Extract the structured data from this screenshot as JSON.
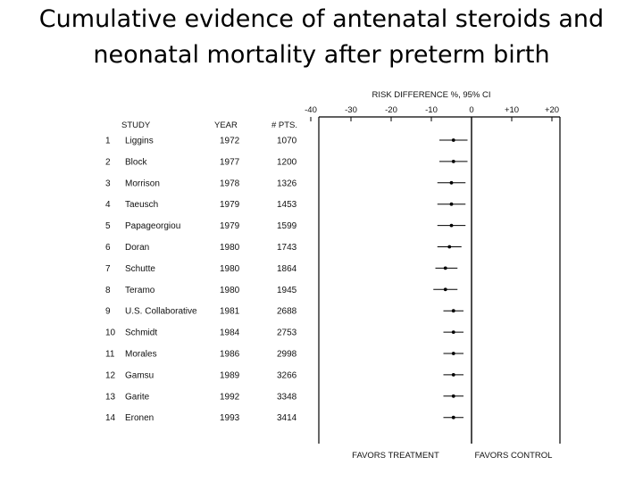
{
  "slide": {
    "title_line1": "Cumulative evidence of antenatal steroids and",
    "title_line2": "neonatal mortality after preterm birth"
  },
  "chart_data": {
    "type": "forest",
    "axis_title": "RISK DIFFERENCE %, 95% CI",
    "x_ticks": [
      -40,
      -30,
      -20,
      -10,
      0,
      10,
      20
    ],
    "x_tick_labels": [
      "-40",
      "-30",
      "-20",
      "-10",
      "0",
      "+10",
      "+20"
    ],
    "xlim": [
      -40,
      20
    ],
    "reference_line": 0,
    "columns": {
      "num": "",
      "study": "STUDY",
      "year": "YEAR",
      "pts": "# PTS."
    },
    "rows": [
      {
        "num": "1",
        "study": "Liggins",
        "year": "1972",
        "pts": "1070",
        "estimate": -4.5,
        "ci": [
          -8,
          -1
        ]
      },
      {
        "num": "2",
        "study": "Block",
        "year": "1977",
        "pts": "1200",
        "estimate": -4.5,
        "ci": [
          -8,
          -1
        ]
      },
      {
        "num": "3",
        "study": "Morrison",
        "year": "1978",
        "pts": "1326",
        "estimate": -5.0,
        "ci": [
          -8.5,
          -1.5
        ]
      },
      {
        "num": "4",
        "study": "Taeusch",
        "year": "1979",
        "pts": "1453",
        "estimate": -5.0,
        "ci": [
          -8.5,
          -1.5
        ]
      },
      {
        "num": "5",
        "study": "Papageorgiou",
        "year": "1979",
        "pts": "1599",
        "estimate": -5.0,
        "ci": [
          -8.5,
          -1.5
        ]
      },
      {
        "num": "6",
        "study": "Doran",
        "year": "1980",
        "pts": "1743",
        "estimate": -5.5,
        "ci": [
          -8.5,
          -2.5
        ]
      },
      {
        "num": "7",
        "study": "Schutte",
        "year": "1980",
        "pts": "1864",
        "estimate": -6.5,
        "ci": [
          -9,
          -3.5
        ]
      },
      {
        "num": "8",
        "study": "Teramo",
        "year": "1980",
        "pts": "1945",
        "estimate": -6.5,
        "ci": [
          -9.5,
          -3.5
        ]
      },
      {
        "num": "9",
        "study": "U.S. Collaborative",
        "year": "1981",
        "pts": "2688",
        "estimate": -4.5,
        "ci": [
          -7,
          -2
        ]
      },
      {
        "num": "10",
        "study": "Schmidt",
        "year": "1984",
        "pts": "2753",
        "estimate": -4.5,
        "ci": [
          -7,
          -2
        ]
      },
      {
        "num": "11",
        "study": "Morales",
        "year": "1986",
        "pts": "2998",
        "estimate": -4.5,
        "ci": [
          -7,
          -2
        ]
      },
      {
        "num": "12",
        "study": "Gamsu",
        "year": "1989",
        "pts": "3266",
        "estimate": -4.5,
        "ci": [
          -7,
          -2
        ]
      },
      {
        "num": "13",
        "study": "Garite",
        "year": "1992",
        "pts": "3348",
        "estimate": -4.5,
        "ci": [
          -7,
          -2
        ]
      },
      {
        "num": "14",
        "study": "Eronen",
        "year": "1993",
        "pts": "3414",
        "estimate": -4.5,
        "ci": [
          -7,
          -2
        ]
      }
    ],
    "favors_left": "FAVORS TREATMENT",
    "favors_right": "FAVORS CONTROL"
  }
}
